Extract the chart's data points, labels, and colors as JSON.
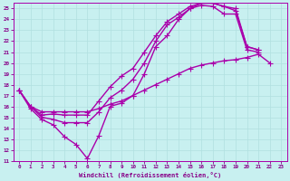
{
  "bg_color": "#c8f0f0",
  "line_color": "#aa00aa",
  "marker": "+",
  "markersize": 4,
  "linewidth": 1.0,
  "xlim": [
    -0.5,
    23.5
  ],
  "ylim": [
    11,
    25.5
  ],
  "xticks": [
    0,
    1,
    2,
    3,
    4,
    5,
    6,
    7,
    8,
    9,
    10,
    11,
    12,
    13,
    14,
    15,
    16,
    17,
    18,
    19,
    20,
    21,
    22,
    23
  ],
  "yticks": [
    11,
    12,
    13,
    14,
    15,
    16,
    17,
    18,
    19,
    20,
    21,
    22,
    23,
    24,
    25
  ],
  "xlabel": "Windchill (Refroidissement éolien,°C)",
  "xlabel_color": "#880088",
  "tick_color": "#880088",
  "grid_color": "#b0e0e0",
  "lines": [
    {
      "x": [
        0,
        1,
        2,
        3,
        4,
        5,
        6,
        7,
        8,
        9,
        10,
        11,
        12,
        13,
        14,
        15,
        16,
        17,
        18,
        19,
        20,
        21,
        22
      ],
      "y": [
        17.5,
        16.0,
        15.5,
        15.5,
        15.5,
        15.5,
        15.5,
        15.8,
        16.2,
        16.5,
        17.0,
        17.5,
        18.0,
        18.5,
        19.0,
        19.5,
        19.8,
        20.0,
        20.2,
        20.3,
        20.5,
        20.8,
        20.0
      ]
    },
    {
      "x": [
        0,
        1,
        2,
        3,
        4,
        5,
        6,
        7,
        8,
        9,
        10,
        11,
        12,
        13,
        14,
        15,
        16,
        17,
        18,
        19,
        20,
        21
      ],
      "y": [
        17.5,
        15.8,
        14.8,
        14.3,
        13.2,
        12.5,
        11.2,
        13.3,
        16.0,
        16.3,
        17.0,
        19.0,
        21.5,
        22.5,
        24.0,
        25.0,
        25.3,
        25.2,
        24.5,
        24.5,
        21.2,
        21.0
      ]
    },
    {
      "x": [
        0,
        1,
        2,
        3,
        4,
        5,
        6,
        7,
        8,
        9,
        10,
        11,
        12,
        13,
        14,
        15,
        16,
        17,
        18,
        19,
        20,
        21
      ],
      "y": [
        17.5,
        16.0,
        15.0,
        14.8,
        14.5,
        14.5,
        14.5,
        15.5,
        16.8,
        17.5,
        18.5,
        20.0,
        22.0,
        23.5,
        24.2,
        25.0,
        25.5,
        25.5,
        25.2,
        24.8,
        21.5,
        21.2
      ]
    },
    {
      "x": [
        0,
        1,
        2,
        3,
        4,
        5,
        6,
        7,
        8,
        9,
        10,
        11,
        12,
        13,
        14,
        15,
        16,
        17,
        18,
        19,
        20,
        21
      ],
      "y": [
        17.5,
        16.0,
        15.2,
        15.3,
        15.2,
        15.2,
        15.2,
        16.5,
        17.8,
        18.8,
        19.5,
        21.0,
        22.5,
        23.8,
        24.5,
        25.2,
        25.5,
        25.5,
        25.2,
        25.0,
        21.5,
        21.2
      ]
    }
  ]
}
